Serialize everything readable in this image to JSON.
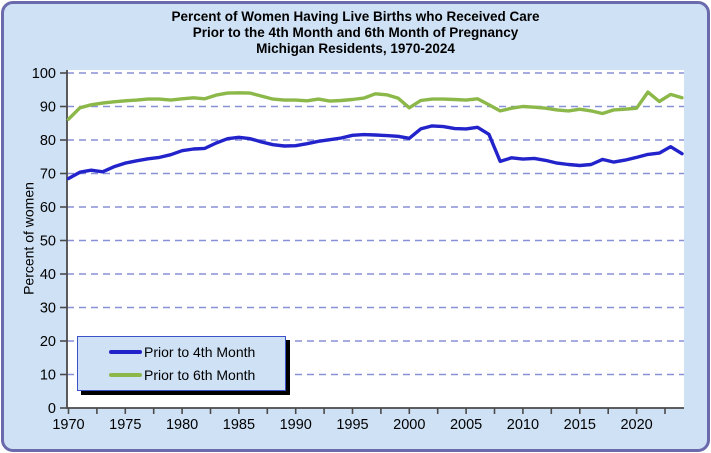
{
  "title": {
    "line1": "Percent of Women Having Live Births who Received Care",
    "line2": "Prior to the 4th Month and 6th Month of Pregnancy",
    "line3": "Michigan Residents, 1970-2024"
  },
  "legend": {
    "items": [
      {
        "label": "Prior to 4th Month",
        "color": "#2323cb"
      },
      {
        "label": "Prior to 6th Month",
        "color": "#8cb84a"
      }
    ]
  },
  "chart_data": {
    "type": "line",
    "x": [
      1970,
      1971,
      1972,
      1973,
      1974,
      1975,
      1976,
      1977,
      1978,
      1979,
      1980,
      1981,
      1982,
      1983,
      1984,
      1985,
      1986,
      1987,
      1988,
      1989,
      1990,
      1991,
      1992,
      1993,
      1994,
      1995,
      1996,
      1997,
      1998,
      1999,
      2000,
      2001,
      2002,
      2003,
      2004,
      2005,
      2006,
      2007,
      2008,
      2009,
      2010,
      2011,
      2012,
      2013,
      2014,
      2015,
      2016,
      2017,
      2018,
      2019,
      2020,
      2021,
      2022,
      2023,
      2024
    ],
    "series": [
      {
        "name": "Prior to 4th Month",
        "color": "#2323cb",
        "values": [
          68.5,
          70.4,
          71.0,
          70.5,
          72.0,
          73.1,
          73.8,
          74.4,
          74.8,
          75.6,
          76.8,
          77.3,
          77.5,
          79.1,
          80.4,
          80.8,
          80.4,
          79.4,
          78.6,
          78.2,
          78.3,
          78.9,
          79.6,
          80.1,
          80.6,
          81.4,
          81.6,
          81.5,
          81.3,
          81.1,
          80.5,
          83.3,
          84.2,
          84.0,
          83.4,
          83.3,
          83.8,
          81.7,
          73.6,
          74.7,
          74.3,
          74.5,
          73.9,
          73.1,
          72.7,
          72.4,
          72.7,
          74.2,
          73.4,
          74.0,
          74.8,
          75.7,
          76.1,
          78.0,
          75.9
        ]
      },
      {
        "name": "Prior to 6th Month",
        "color": "#8cb84a",
        "values": [
          86.2,
          89.6,
          90.5,
          91.0,
          91.4,
          91.7,
          91.9,
          92.2,
          92.2,
          91.9,
          92.3,
          92.6,
          92.3,
          93.4,
          94.0,
          94.1,
          94.0,
          93.1,
          92.2,
          91.9,
          91.9,
          91.7,
          92.2,
          91.6,
          91.8,
          92.1,
          92.5,
          93.8,
          93.5,
          92.5,
          89.6,
          91.8,
          92.2,
          92.2,
          92.1,
          91.9,
          92.3,
          90.5,
          88.7,
          89.5,
          90.0,
          89.8,
          89.5,
          89.0,
          88.7,
          89.2,
          88.7,
          87.9,
          89.0,
          89.2,
          89.5,
          94.3,
          91.5,
          93.6,
          92.6
        ]
      }
    ],
    "title": "Percent of Women Having Live Births who Received Care Prior to the 4th Month and 6th Month of Pregnancy, Michigan Residents, 1970-2024",
    "xlabel": "",
    "ylabel": "Percent of women",
    "ylim": [
      0,
      100
    ],
    "ytick_step": 10,
    "xtick_labels": [
      1970,
      1975,
      1980,
      1985,
      1990,
      1995,
      2000,
      2005,
      2010,
      2015,
      2020
    ],
    "xtick_minor_step": 2.5,
    "xtick_minor_end": 2022.5,
    "grid": "horizontal-dashed",
    "legend_position": "bottom-left"
  },
  "colors": {
    "panel_bg": "#cfe1f5",
    "panel_border": "#6a6aad",
    "plot_bg": "#ffffff",
    "gridline": "#8891d6",
    "axis": "#4a4a4a",
    "tick_label": "#000000",
    "legend_border": "#3c50c8",
    "legend_shadow": "#000000"
  }
}
